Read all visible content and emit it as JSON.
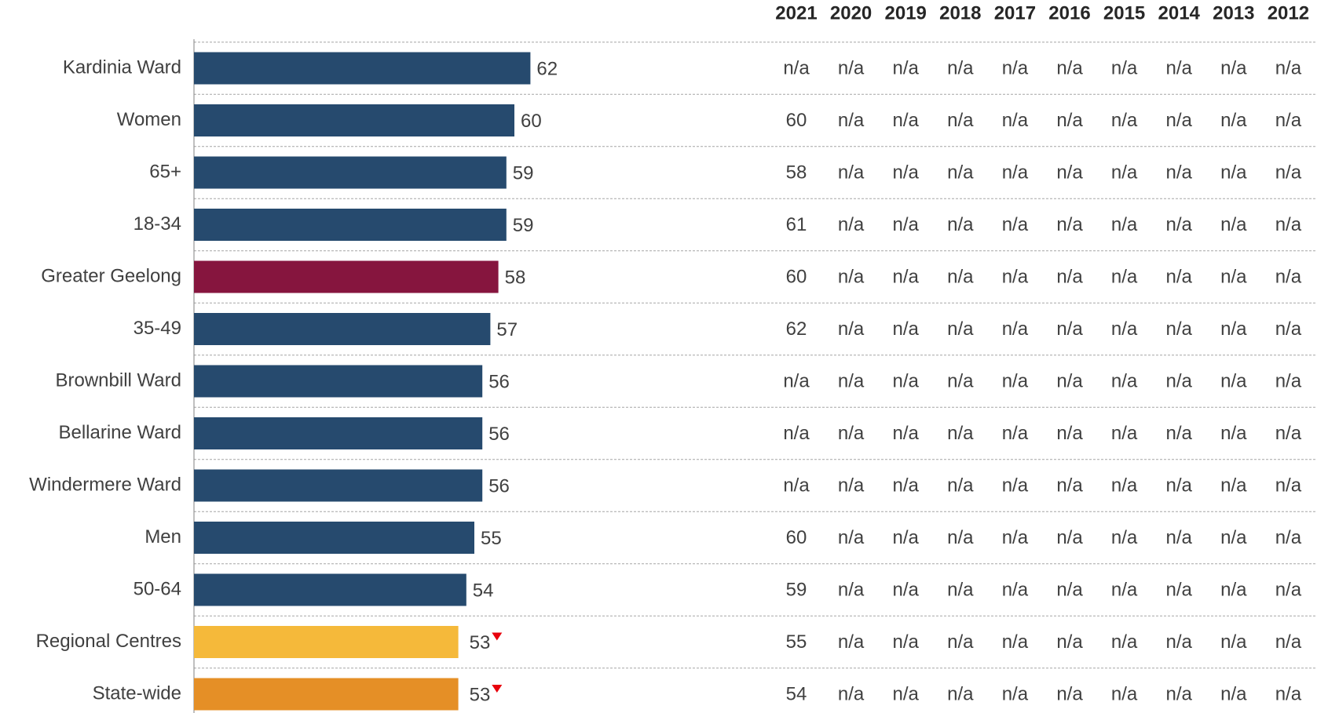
{
  "chart_data": {
    "type": "bar",
    "orientation": "horizontal",
    "categories": [
      "Kardinia Ward",
      "Women",
      "65+",
      "18-34",
      "Greater Geelong",
      "35-49",
      "Brownbill Ward",
      "Bellarine Ward",
      "Windermere Ward",
      "Men",
      "50-64",
      "Regional Centres",
      "State-wide"
    ],
    "values": [
      62,
      60,
      59,
      59,
      58,
      57,
      56,
      56,
      56,
      55,
      54,
      53,
      53
    ],
    "colors": [
      "#264a6e",
      "#264a6e",
      "#264a6e",
      "#264a6e",
      "#86153e",
      "#264a6e",
      "#264a6e",
      "#264a6e",
      "#264a6e",
      "#264a6e",
      "#264a6e",
      "#f5b93a",
      "#e58f26"
    ],
    "significantly_lower": [
      false,
      false,
      false,
      false,
      false,
      false,
      false,
      false,
      false,
      false,
      false,
      true,
      true
    ],
    "xlim": [
      20,
      100
    ],
    "grid": true
  },
  "table": {
    "columns": [
      "2021",
      "2020",
      "2019",
      "2018",
      "2017",
      "2016",
      "2015",
      "2014",
      "2013",
      "2012"
    ],
    "rows": [
      [
        "n/a",
        "n/a",
        "n/a",
        "n/a",
        "n/a",
        "n/a",
        "n/a",
        "n/a",
        "n/a",
        "n/a"
      ],
      [
        60,
        "n/a",
        "n/a",
        "n/a",
        "n/a",
        "n/a",
        "n/a",
        "n/a",
        "n/a",
        "n/a"
      ],
      [
        58,
        "n/a",
        "n/a",
        "n/a",
        "n/a",
        "n/a",
        "n/a",
        "n/a",
        "n/a",
        "n/a"
      ],
      [
        61,
        "n/a",
        "n/a",
        "n/a",
        "n/a",
        "n/a",
        "n/a",
        "n/a",
        "n/a",
        "n/a"
      ],
      [
        60,
        "n/a",
        "n/a",
        "n/a",
        "n/a",
        "n/a",
        "n/a",
        "n/a",
        "n/a",
        "n/a"
      ],
      [
        62,
        "n/a",
        "n/a",
        "n/a",
        "n/a",
        "n/a",
        "n/a",
        "n/a",
        "n/a",
        "n/a"
      ],
      [
        "n/a",
        "n/a",
        "n/a",
        "n/a",
        "n/a",
        "n/a",
        "n/a",
        "n/a",
        "n/a",
        "n/a"
      ],
      [
        "n/a",
        "n/a",
        "n/a",
        "n/a",
        "n/a",
        "n/a",
        "n/a",
        "n/a",
        "n/a",
        "n/a"
      ],
      [
        "n/a",
        "n/a",
        "n/a",
        "n/a",
        "n/a",
        "n/a",
        "n/a",
        "n/a",
        "n/a",
        "n/a"
      ],
      [
        60,
        "n/a",
        "n/a",
        "n/a",
        "n/a",
        "n/a",
        "n/a",
        "n/a",
        "n/a",
        "n/a"
      ],
      [
        59,
        "n/a",
        "n/a",
        "n/a",
        "n/a",
        "n/a",
        "n/a",
        "n/a",
        "n/a",
        "n/a"
      ],
      [
        55,
        "n/a",
        "n/a",
        "n/a",
        "n/a",
        "n/a",
        "n/a",
        "n/a",
        "n/a",
        "n/a"
      ],
      [
        54,
        "n/a",
        "n/a",
        "n/a",
        "n/a",
        "n/a",
        "n/a",
        "n/a",
        "n/a",
        "n/a"
      ]
    ]
  }
}
